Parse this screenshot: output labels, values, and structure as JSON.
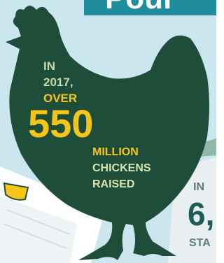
{
  "header": {
    "title": "Poul"
  },
  "chicken_stat": {
    "lines": [
      "IN",
      "2017,",
      "OVER"
    ],
    "number": "550",
    "unit_lines": [
      "MILLION",
      "CHICKENS",
      "RAISED"
    ]
  },
  "side_stat": {
    "lead": "IN",
    "number": "6,",
    "sub": "STA"
  }
}
